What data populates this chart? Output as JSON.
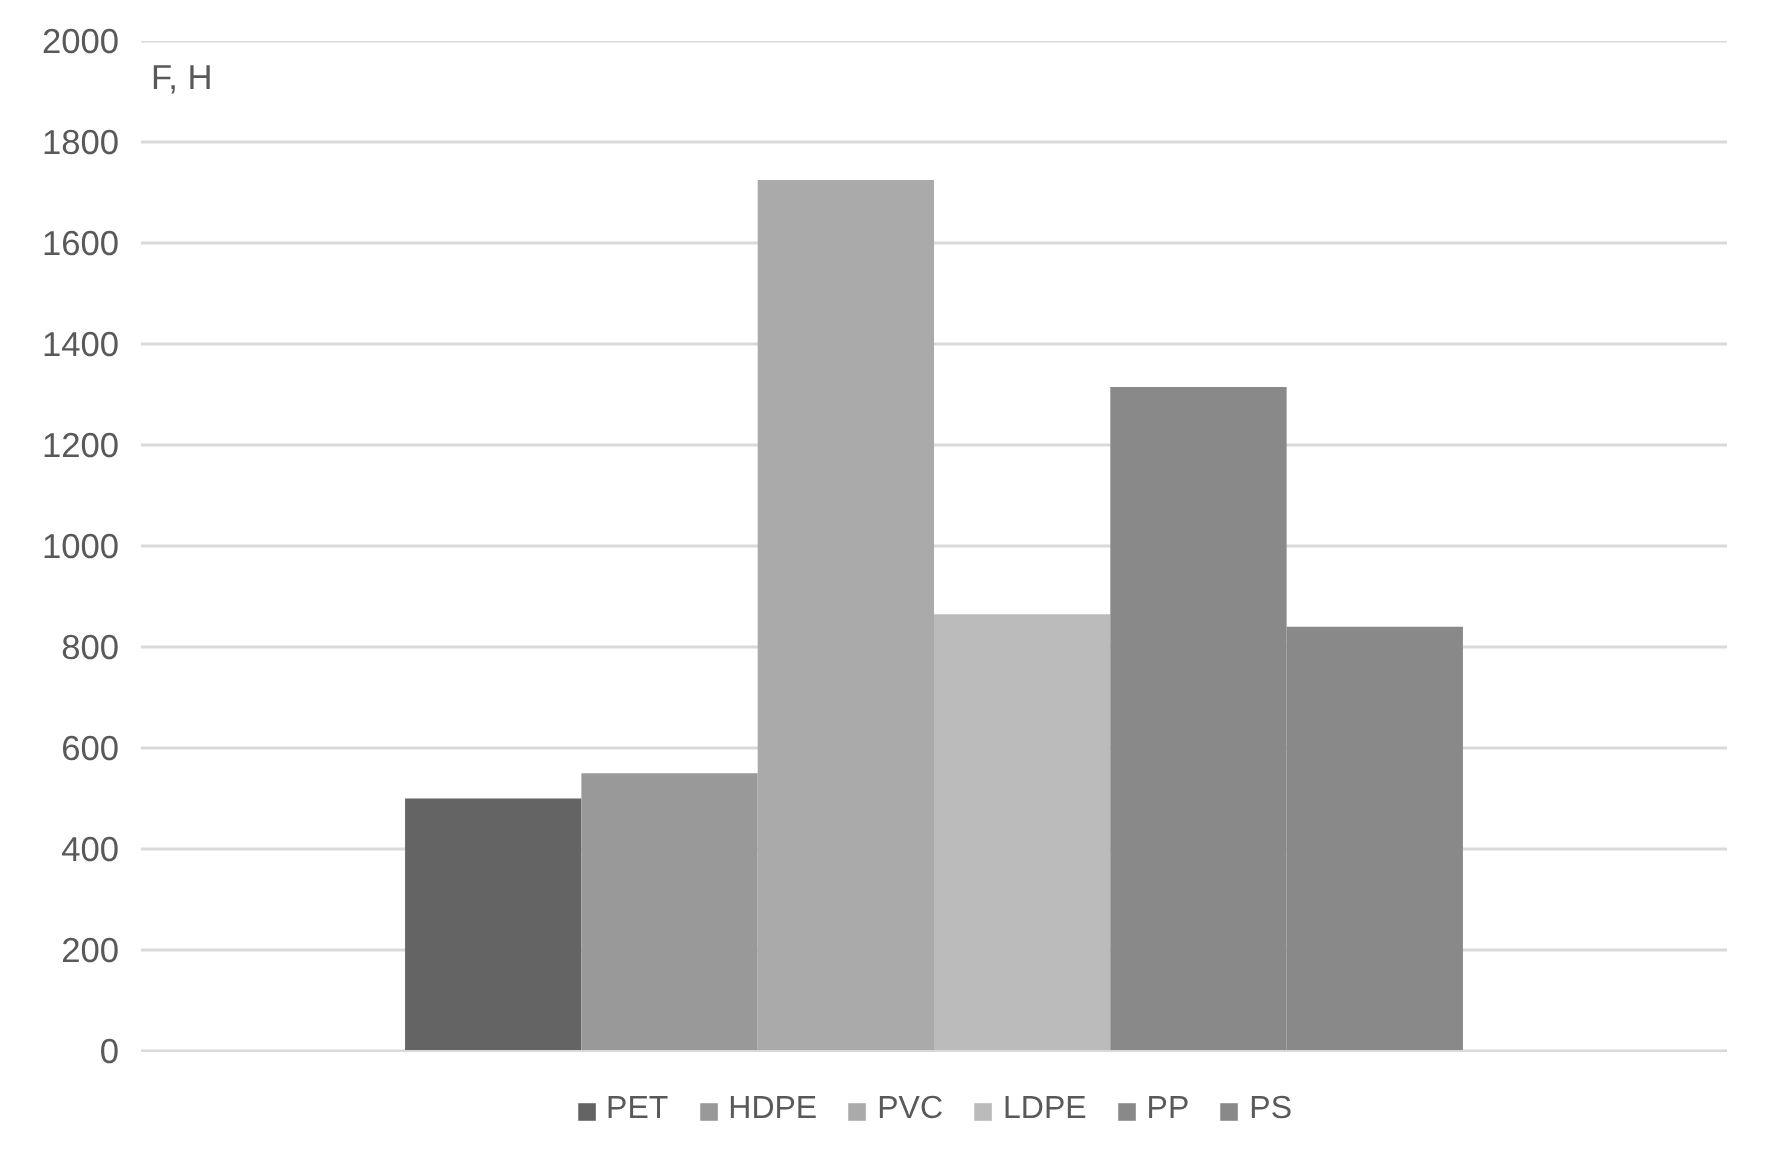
{
  "chart_data": {
    "type": "bar",
    "ylabel": "F, Н",
    "categories": [
      null
    ],
    "series": [
      {
        "name": "PET",
        "color": "#646464",
        "values": [
          500
        ]
      },
      {
        "name": "HDPE",
        "color": "#999999",
        "values": [
          550
        ]
      },
      {
        "name": "PVC",
        "color": "#aaaaaa",
        "values": [
          1725
        ]
      },
      {
        "name": "LDPE",
        "color": "#bbbbbb",
        "values": [
          865
        ]
      },
      {
        "name": "PP",
        "color": "#898989",
        "values": [
          1315
        ]
      },
      {
        "name": "PS",
        "color": "#898989",
        "values": [
          840
        ]
      }
    ],
    "ylim": [
      0,
      2000
    ],
    "yticks": [
      0,
      200,
      400,
      600,
      800,
      1000,
      1200,
      1400,
      1600,
      1800,
      2000
    ],
    "grid": "y",
    "legend": "bottom"
  }
}
